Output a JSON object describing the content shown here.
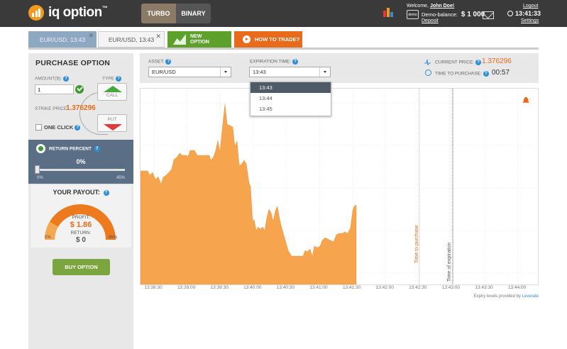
{
  "brand": {
    "name": "iq option",
    "tm": "™",
    "color": "#f39a1e"
  },
  "modes": [
    {
      "label": "TURBO",
      "active": true
    },
    {
      "label": "BINARY",
      "active": false
    }
  ],
  "user": {
    "welcome_prefix": "Welcome,",
    "name": "John Doe!",
    "balance_label": "Demo-balance:",
    "balance_value": "$ 1 000",
    "deposit": "Deposit",
    "logout": "Logout",
    "time": "13:41:33",
    "settings": "Settings",
    "demo_icon_text": "demo"
  },
  "option_tabs": [
    {
      "label": "EUR/USD, 13:43"
    },
    {
      "label": "EUR/USD, 13:43"
    }
  ],
  "new_option": {
    "line1": "NEW",
    "line2": "OPTION"
  },
  "how_to_trade": "HOW TO TRADE?",
  "purchase": {
    "title": "PURCHASE OPTION",
    "amount_label": "AMOUNT($):",
    "amount_value": "1",
    "type_label": "TYPE",
    "call_label": "CALL",
    "put_label": "PUT",
    "strike_label": "STRIKE PRICE:",
    "strike_value": "1.376296",
    "one_click": "ONE CLICK"
  },
  "return_percent": {
    "label": "RETURN PERCENT",
    "value": "0%",
    "min": "0%",
    "max": "45%",
    "slider_fraction": 0
  },
  "payout": {
    "title": "YOUR PAYOUT:",
    "gauge_top": "86%",
    "profit_label": "PROFIT:",
    "profit_value": "$ 1.86",
    "return_label": "RETURN:",
    "return_value": "$ 0",
    "min": "0%",
    "max": "86%"
  },
  "buy_button": "BUY OPTION",
  "asset": {
    "label": "ASSET:",
    "value": "EUR/USD"
  },
  "expiration": {
    "label": "EXPIRATION TIME:",
    "value": "13:43",
    "options": [
      "13:43",
      "13:44",
      "13:45"
    ],
    "selected_index": 0
  },
  "current_price": {
    "label": "CURRENT PRICE:",
    "value": "1.376296"
  },
  "time_to_purchase": {
    "label": "TIME TO PURCHASE:",
    "value": "00:57"
  },
  "alarm_badge": "on",
  "chart_data": {
    "type": "area",
    "x_ticks": [
      "13:38:30",
      "13:39:00",
      "13:39:30",
      "13:40:00",
      "13:40:30",
      "13:41:00",
      "13:41:30",
      "13:42:00",
      "13:42:30",
      "13:43:00",
      "13:43:30",
      "13:44:00"
    ],
    "series_color": "#f6a54e",
    "purchase_line_label": "Time to purchase",
    "expiration_line_label": "Time of expiration",
    "footer": {
      "prefix": "Expiry levels provided by",
      "provider": "Leverate"
    }
  },
  "colors": {
    "topbar": "#3a3a3a",
    "accent": "#e86a1a",
    "call": "#46a73a",
    "put": "#e23a3a",
    "buy": "#7ba53e"
  }
}
